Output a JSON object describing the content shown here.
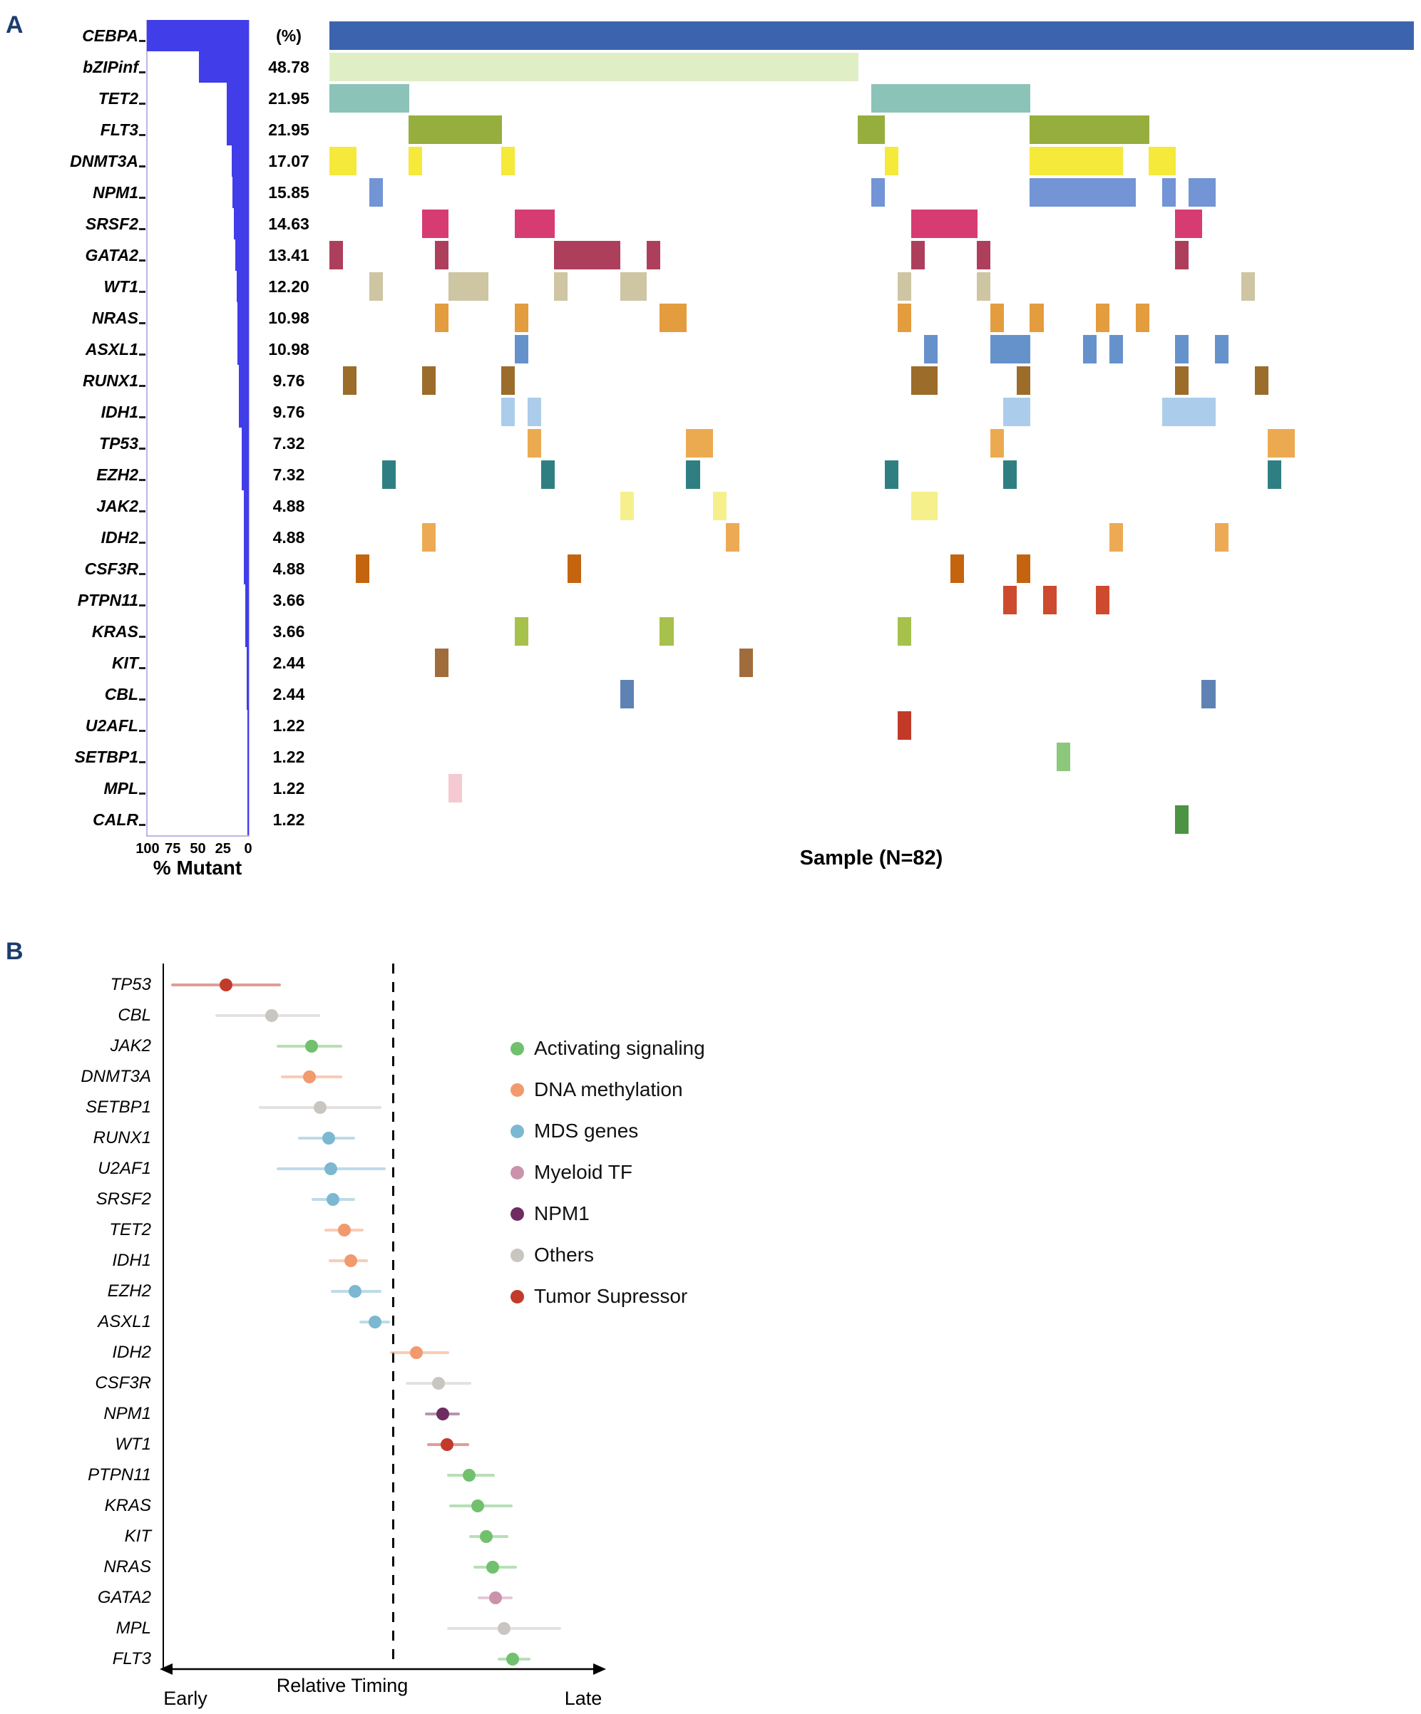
{
  "figure": {
    "panel_a_label": "A",
    "panel_b_label": "B"
  },
  "chart_data": [
    {
      "type": "heatmap",
      "name": "oncoprint",
      "xlabel": "Sample (N=82)",
      "bar_axis": {
        "label": "% Mutant",
        "ticks": [
          "100",
          "75",
          "50",
          "25",
          "0"
        ],
        "range": [
          100,
          0
        ]
      },
      "n_samples": 82,
      "bar_color": "#413de8",
      "genes": [
        {
          "name": "CEBPA",
          "pct": 100,
          "pct_label": "(%)",
          "color": "#3c64ae",
          "cells": [
            "0-81"
          ]
        },
        {
          "name": "bZIPinf",
          "pct": 48.78,
          "pct_label": "48.78",
          "color": "#e0eec6",
          "cells": [
            "0-39"
          ]
        },
        {
          "name": "TET2",
          "pct": 21.95,
          "pct_label": "21.95",
          "color": "#8cc3b8",
          "cells": [
            "0-5",
            "41-52"
          ]
        },
        {
          "name": "FLT3",
          "pct": 21.95,
          "pct_label": "21.95",
          "color": "#96ae3e",
          "cells": [
            "6-12",
            "40-41",
            "53-61"
          ]
        },
        {
          "name": "DNMT3A",
          "pct": 17.07,
          "pct_label": "17.07",
          "color": "#f5e93a",
          "cells": [
            "0-1",
            6,
            13,
            42,
            "53-59",
            "62-63"
          ]
        },
        {
          "name": "NPM1",
          "pct": 15.85,
          "pct_label": "15.85",
          "color": "#7394d5",
          "cells": [
            3,
            41,
            "53-60",
            63,
            "65-66"
          ]
        },
        {
          "name": "SRSF2",
          "pct": 14.63,
          "pct_label": "14.63",
          "color": "#d63c72",
          "cells": [
            "7-8",
            "14-16",
            "44-48",
            "64-65"
          ]
        },
        {
          "name": "GATA2",
          "pct": 13.41,
          "pct_label": "13.41",
          "color": "#ad3f5c",
          "cells": [
            0,
            8,
            "17-21",
            24,
            44,
            49,
            64
          ]
        },
        {
          "name": "WT1",
          "pct": 12.2,
          "pct_label": "12.20",
          "color": "#cec5a2",
          "cells": [
            3,
            "9-11",
            17,
            "22-23",
            43,
            49,
            69
          ]
        },
        {
          "name": "NRAS",
          "pct": 10.98,
          "pct_label": "10.98",
          "color": "#e39c3e",
          "cells": [
            8,
            14,
            "25-26",
            43,
            50,
            53,
            58,
            61
          ]
        },
        {
          "name": "ASXL1",
          "pct": 10.98,
          "pct_label": "10.98",
          "color": "#6692cc",
          "cells": [
            14,
            45,
            "50-52",
            57,
            59,
            64,
            67
          ]
        },
        {
          "name": "RUNX1",
          "pct": 9.76,
          "pct_label": "9.76",
          "color": "#9c6c2a",
          "cells": [
            1,
            7,
            13,
            "44-45",
            52,
            64,
            70
          ]
        },
        {
          "name": "IDH1",
          "pct": 9.76,
          "pct_label": "9.76",
          "color": "#abcdeb",
          "cells": [
            13,
            15,
            "51-52",
            "63-66"
          ]
        },
        {
          "name": "TP53",
          "pct": 7.32,
          "pct_label": "7.32",
          "color": "#ecaa50",
          "cells": [
            15,
            "27-28",
            50,
            "71-72"
          ]
        },
        {
          "name": "EZH2",
          "pct": 7.32,
          "pct_label": "7.32",
          "color": "#2f7f82",
          "cells": [
            4,
            16,
            27,
            42,
            51,
            71
          ]
        },
        {
          "name": "JAK2",
          "pct": 4.88,
          "pct_label": "4.88",
          "color": "#f6f08c",
          "cells": [
            22,
            29,
            "44-45"
          ]
        },
        {
          "name": "IDH2",
          "pct": 4.88,
          "pct_label": "4.88",
          "color": "#edaa55",
          "cells": [
            7,
            30,
            59,
            67
          ]
        },
        {
          "name": "CSF3R",
          "pct": 4.88,
          "pct_label": "4.88",
          "color": "#c4640f",
          "cells": [
            2,
            18,
            47,
            52
          ]
        },
        {
          "name": "PTPN11",
          "pct": 3.66,
          "pct_label": "3.66",
          "color": "#cd4a2e",
          "cells": [
            51,
            54,
            58
          ]
        },
        {
          "name": "KRAS",
          "pct": 3.66,
          "pct_label": "3.66",
          "color": "#a6c14c",
          "cells": [
            14,
            25,
            43
          ]
        },
        {
          "name": "KIT",
          "pct": 2.44,
          "pct_label": "2.44",
          "color": "#a16c3c",
          "cells": [
            8,
            31
          ]
        },
        {
          "name": "CBL",
          "pct": 2.44,
          "pct_label": "2.44",
          "color": "#5e82b4",
          "cells": [
            22,
            66
          ]
        },
        {
          "name": "U2AFL",
          "pct": 1.22,
          "pct_label": "1.22",
          "color": "#c13a28",
          "cells": [
            43
          ]
        },
        {
          "name": "SETBP1",
          "pct": 1.22,
          "pct_label": "1.22",
          "color": "#8bc87c",
          "cells": [
            55
          ]
        },
        {
          "name": "MPL",
          "pct": 1.22,
          "pct_label": "1.22",
          "color": "#f5c9d2",
          "cells": [
            9
          ]
        },
        {
          "name": "CALR",
          "pct": 1.22,
          "pct_label": "1.22",
          "color": "#4c9343",
          "cells": [
            64
          ]
        }
      ]
    },
    {
      "type": "scatter",
      "name": "relative-timing",
      "xlabel": "Relative Timing",
      "x_left_label": "Early",
      "x_right_label": "Late",
      "xlim": [
        0,
        100
      ],
      "dashed_line_x": 52,
      "legend_position": "center-right",
      "legend": [
        {
          "label": "Activating signaling",
          "color": "#71c06e"
        },
        {
          "label": "DNA methylation",
          "color": "#f19a6e"
        },
        {
          "label": "MDS genes",
          "color": "#7cb8d1"
        },
        {
          "label": "Myeloid TF",
          "color": "#c993ab"
        },
        {
          "label": "NPM1",
          "color": "#6e2c61"
        },
        {
          "label": "Others",
          "color": "#c9c5c1"
        },
        {
          "label": "Tumor Supressor",
          "color": "#c23b2a"
        }
      ],
      "points": [
        {
          "name": "TP53",
          "category": "Tumor Supressor",
          "x": 13.5,
          "lo": 1,
          "hi": 26
        },
        {
          "name": "CBL",
          "category": "Others",
          "x": 24,
          "lo": 11,
          "hi": 35
        },
        {
          "name": "JAK2",
          "category": "Activating signaling",
          "x": 33,
          "lo": 25,
          "hi": 40
        },
        {
          "name": "DNMT3A",
          "category": "DNA methylation",
          "x": 32.5,
          "lo": 26,
          "hi": 40
        },
        {
          "name": "SETBP1",
          "category": "Others",
          "x": 35,
          "lo": 21,
          "hi": 49
        },
        {
          "name": "RUNX1",
          "category": "MDS genes",
          "x": 37,
          "lo": 30,
          "hi": 43
        },
        {
          "name": "U2AF1",
          "category": "MDS genes",
          "x": 37.5,
          "lo": 25,
          "hi": 50
        },
        {
          "name": "SRSF2",
          "category": "MDS genes",
          "x": 38,
          "lo": 33,
          "hi": 43
        },
        {
          "name": "TET2",
          "category": "DNA methylation",
          "x": 40.5,
          "lo": 36,
          "hi": 45
        },
        {
          "name": "IDH1",
          "category": "DNA methylation",
          "x": 42,
          "lo": 37,
          "hi": 46
        },
        {
          "name": "EZH2",
          "category": "MDS genes",
          "x": 43,
          "lo": 37.5,
          "hi": 49
        },
        {
          "name": "ASXL1",
          "category": "MDS genes",
          "x": 47.5,
          "lo": 44,
          "hi": 51
        },
        {
          "name": "IDH2",
          "category": "DNA methylation",
          "x": 57,
          "lo": 51,
          "hi": 64.5
        },
        {
          "name": "CSF3R",
          "category": "Others",
          "x": 62,
          "lo": 54.5,
          "hi": 69.5
        },
        {
          "name": "NPM1",
          "category": "NPM1",
          "x": 63,
          "lo": 59,
          "hi": 67
        },
        {
          "name": "WT1",
          "category": "Tumor Supressor",
          "x": 64,
          "lo": 59.5,
          "hi": 69
        },
        {
          "name": "PTPN11",
          "category": "Activating signaling",
          "x": 69,
          "lo": 64,
          "hi": 75
        },
        {
          "name": "KRAS",
          "category": "Activating signaling",
          "x": 71,
          "lo": 64.5,
          "hi": 79
        },
        {
          "name": "KIT",
          "category": "Activating signaling",
          "x": 73,
          "lo": 69,
          "hi": 78
        },
        {
          "name": "NRAS",
          "category": "Activating signaling",
          "x": 74.5,
          "lo": 70,
          "hi": 80
        },
        {
          "name": "GATA2",
          "category": "Myeloid TF",
          "x": 75,
          "lo": 71,
          "hi": 79
        },
        {
          "name": "MPL",
          "category": "Others",
          "x": 77,
          "lo": 64,
          "hi": 90
        },
        {
          "name": "FLT3",
          "category": "Activating signaling",
          "x": 79,
          "lo": 75.5,
          "hi": 83
        }
      ]
    }
  ]
}
